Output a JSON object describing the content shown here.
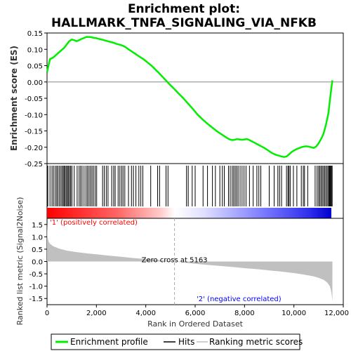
{
  "chart_data": [
    {
      "type": "line",
      "panel": "enrichment",
      "title_line1": "Enrichment plot:",
      "title_line2": "HALLMARK_TNFA_SIGNALING_VIA_NFKB",
      "ylabel": "Enrichment score (ES)",
      "ylim": [
        -0.25,
        0.15
      ],
      "yticks": [
        -0.25,
        -0.2,
        -0.15,
        -0.1,
        -0.05,
        0.0,
        0.05,
        0.1,
        0.15
      ],
      "ytick_labels": [
        "-0.25",
        "-0.20",
        "-0.15",
        "-0.10",
        "-0.05",
        "0.00",
        "0.05",
        "0.10",
        "0.15"
      ],
      "xlim": [
        0,
        12000
      ],
      "line_color": "#00ee00",
      "series": [
        {
          "name": "Enrichment profile",
          "x": [
            0,
            60,
            120,
            250,
            400,
            550,
            700,
            800,
            900,
            1000,
            1100,
            1200,
            1300,
            1400,
            1500,
            1600,
            1700,
            1800,
            1900,
            2000,
            2100,
            2200,
            2300,
            2400,
            2500,
            2600,
            2700,
            2800,
            2900,
            3000,
            3100,
            3200,
            3300,
            3400,
            3500,
            3600,
            3700,
            3800,
            3900,
            4000,
            4100,
            4200,
            4300,
            4400,
            4500,
            4600,
            4700,
            4800,
            4900,
            5000,
            5163,
            5300,
            5500,
            5700,
            5900,
            6100,
            6300,
            6500,
            6700,
            6900,
            7100,
            7300,
            7400,
            7500,
            7600,
            7700,
            7800,
            7900,
            8000,
            8100,
            8200,
            8300,
            8400,
            8500,
            8600,
            8700,
            8800,
            8900,
            9000,
            9100,
            9200,
            9300,
            9400,
            9500,
            9600,
            9700,
            9800,
            9900,
            10000,
            10100,
            10200,
            10300,
            10400,
            10500,
            10600,
            10700,
            10800,
            10900,
            11000,
            11100,
            11200,
            11300,
            11400,
            11450,
            11500,
            11530,
            11560
          ],
          "y": [
            0.03,
            0.05,
            0.07,
            0.075,
            0.085,
            0.095,
            0.105,
            0.115,
            0.125,
            0.13,
            0.128,
            0.125,
            0.128,
            0.132,
            0.135,
            0.138,
            0.138,
            0.137,
            0.135,
            0.134,
            0.132,
            0.13,
            0.128,
            0.126,
            0.124,
            0.122,
            0.12,
            0.117,
            0.115,
            0.113,
            0.11,
            0.106,
            0.1,
            0.095,
            0.09,
            0.085,
            0.08,
            0.075,
            0.07,
            0.064,
            0.058,
            0.052,
            0.045,
            0.037,
            0.03,
            0.022,
            0.014,
            0.006,
            -0.002,
            -0.01,
            -0.022,
            -0.033,
            -0.048,
            -0.065,
            -0.082,
            -0.1,
            -0.115,
            -0.128,
            -0.14,
            -0.152,
            -0.162,
            -0.172,
            -0.176,
            -0.178,
            -0.177,
            -0.175,
            -0.176,
            -0.177,
            -0.176,
            -0.175,
            -0.178,
            -0.182,
            -0.186,
            -0.19,
            -0.194,
            -0.198,
            -0.202,
            -0.207,
            -0.212,
            -0.217,
            -0.221,
            -0.224,
            -0.226,
            -0.228,
            -0.23,
            -0.228,
            -0.222,
            -0.215,
            -0.21,
            -0.206,
            -0.203,
            -0.2,
            -0.198,
            -0.197,
            -0.198,
            -0.2,
            -0.202,
            -0.198,
            -0.188,
            -0.175,
            -0.158,
            -0.13,
            -0.095,
            -0.06,
            -0.03,
            -0.01,
            0.005
          ]
        }
      ]
    },
    {
      "type": "hits",
      "panel": "hits",
      "series": [
        {
          "name": "Hits",
          "x": [
            30,
            120,
            200,
            260,
            330,
            390,
            440,
            500,
            560,
            610,
            660,
            700,
            740,
            790,
            830,
            870,
            920,
            960,
            1010,
            1100,
            1220,
            1300,
            1360,
            1420,
            1500,
            1580,
            1640,
            1700,
            1760,
            1820,
            1880,
            1950,
            2010,
            2250,
            2320,
            2400,
            2470,
            2620,
            2700,
            2760,
            2880,
            2950,
            3020,
            3080,
            3150,
            3300,
            3420,
            3500,
            3600,
            3720,
            3800,
            3880,
            4200,
            4480,
            4560,
            4820,
            4900,
            5650,
            5720,
            5880,
            6000,
            6320,
            6500,
            6700,
            6820,
            7000,
            7100,
            7180,
            7350,
            7420,
            7500,
            7560,
            7620,
            7680,
            7740,
            7820,
            7900,
            7980,
            8060,
            8200,
            8350,
            8500,
            8580,
            8660,
            9000,
            9200,
            9350,
            9420,
            9500,
            9700,
            9760,
            9800,
            9850,
            9980,
            10120,
            10300,
            10380,
            10430,
            10560,
            10860,
            10940,
            11000,
            11050,
            11100,
            11150,
            11200,
            11250,
            11300,
            11350,
            11400,
            11430,
            11460,
            11490,
            11520,
            11550
          ]
        }
      ]
    },
    {
      "type": "area",
      "panel": "ranked_list",
      "ylabel": "Ranked list metric (Signal2Noise)",
      "xlabel": "Rank in Ordered Dataset",
      "ylim": [
        -1.75,
        1.75
      ],
      "yticks": [
        -1.5,
        -1.0,
        -0.5,
        0.0,
        0.5,
        1.0,
        1.5
      ],
      "ytick_labels": [
        "-1.5",
        "-1.0",
        "-0.5",
        "0.0",
        "0.5",
        "1.0",
        "1.5"
      ],
      "xticks": [
        0,
        2000,
        4000,
        6000,
        8000,
        10000,
        12000
      ],
      "xtick_labels": [
        "0",
        "2,000",
        "4,000",
        "6,000",
        "8,000",
        "10,000",
        "12,000"
      ],
      "xlim": [
        0,
        12000
      ],
      "zero_cross_label": "Zero cross at 5163",
      "zero_cross_x": 5163,
      "positive_label": "'1' (positively correlated)",
      "negative_label": "'2' (negative correlated)",
      "positive_color": "#ff0000",
      "negative_color": "#0000ff",
      "fill_color": "#c0c0c0",
      "series": [
        {
          "name": "Ranking metric scores",
          "x": [
            0,
            20,
            60,
            120,
            250,
            500,
            800,
            1200,
            1600,
            2000,
            2500,
            3000,
            3500,
            4000,
            4500,
            5000,
            5163,
            5500,
            6000,
            6500,
            7000,
            7500,
            8000,
            8500,
            9000,
            9500,
            10000,
            10400,
            10800,
            11000,
            11200,
            11350,
            11450,
            11500,
            11530,
            11560
          ],
          "y": [
            1.55,
            1.0,
            0.82,
            0.72,
            0.62,
            0.52,
            0.44,
            0.38,
            0.33,
            0.29,
            0.24,
            0.19,
            0.14,
            0.1,
            0.06,
            0.02,
            0.0,
            -0.04,
            -0.09,
            -0.14,
            -0.18,
            -0.22,
            -0.27,
            -0.31,
            -0.36,
            -0.41,
            -0.47,
            -0.53,
            -0.6,
            -0.66,
            -0.74,
            -0.85,
            -1.0,
            -1.15,
            -1.35,
            -1.6
          ]
        }
      ]
    }
  ],
  "legend": {
    "items": [
      {
        "label": "Enrichment profile",
        "color": "#00ee00"
      },
      {
        "label": "Hits",
        "color": "#000000"
      },
      {
        "label": "Ranking metric scores",
        "color": "#c0c0c0"
      }
    ]
  }
}
